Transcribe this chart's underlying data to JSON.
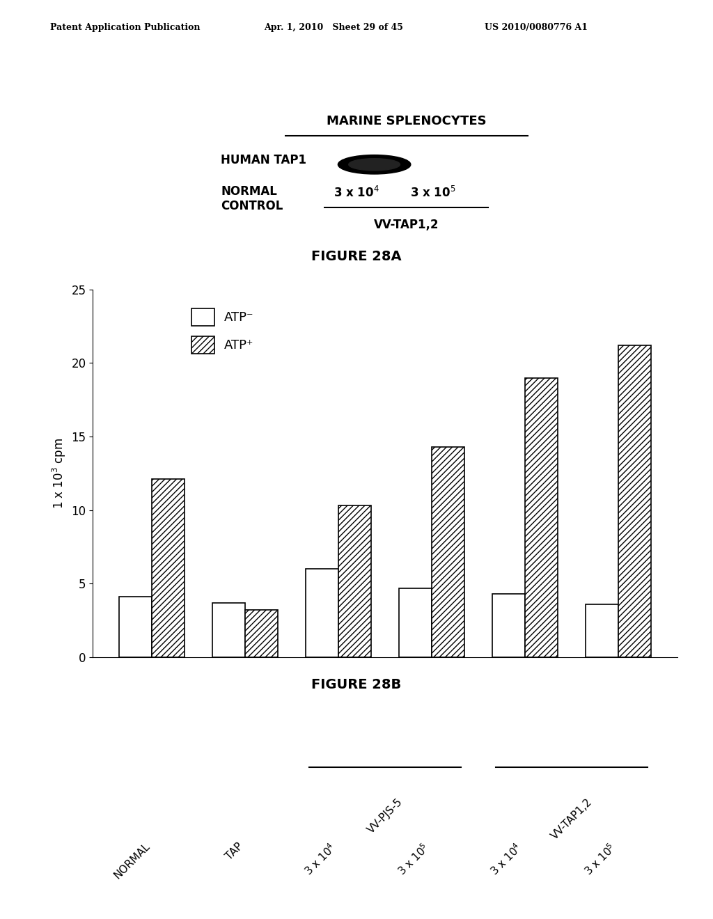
{
  "header_left": "Patent Application Publication",
  "header_mid": "Apr. 1, 2010   Sheet 29 of 45",
  "header_right": "US 2010/0080776 A1",
  "fig28a_title": "FIGURE 28A",
  "fig28b_title": "FIGURE 28B",
  "marine_label": "MARINE SPLENOCYTES",
  "human_tap1_label": "HUMAN TAP1",
  "normal_control_label": "NORMAL\nCONTROL",
  "vv_tap12_label": "VV-TAP1,2",
  "legend_atp_minus": "ATP⁻",
  "legend_atp_plus": "ATP⁺",
  "categories": [
    "NORMAL",
    "TAP",
    "3 x 10$^4$",
    "3 x 10$^5$",
    "3 x 10$^4$",
    "3 x 10$^5$"
  ],
  "group_labels": [
    "VV-PJS-5",
    "VV-TAP1,2"
  ],
  "atp_minus_values": [
    4.1,
    3.7,
    6.0,
    4.7,
    4.3,
    3.6
  ],
  "atp_plus_values": [
    12.1,
    3.2,
    10.3,
    14.3,
    19.0,
    21.2
  ],
  "ylabel": "1 x 10$^3$ cpm",
  "ylim": [
    0,
    25
  ],
  "yticks": [
    0,
    5,
    10,
    15,
    20,
    25
  ],
  "bar_width": 0.35,
  "bar_color_minus": "#ffffff",
  "bar_color_plus": "#ffffff",
  "bar_edge_color": "#000000",
  "hatch_plus": "////",
  "background_color": "#ffffff"
}
